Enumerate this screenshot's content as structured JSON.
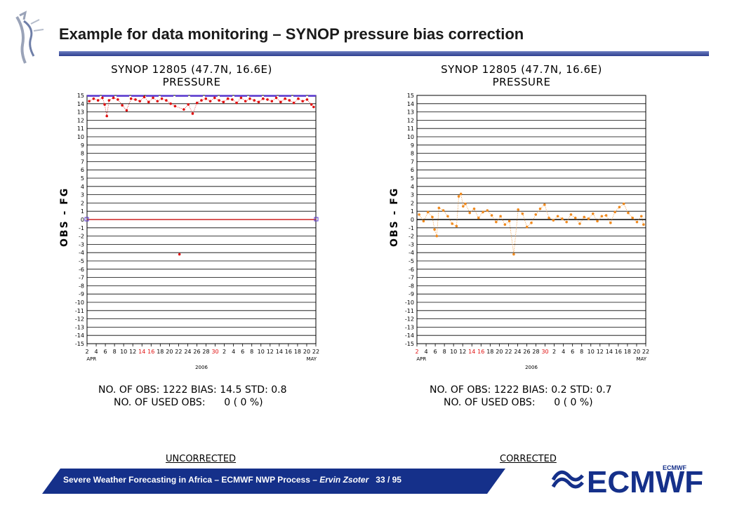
{
  "slide": {
    "title": "Example for data monitoring – SYNOP pressure bias correction",
    "footer_main": "Severe Weather Forecasting in Africa – ECMWF NWP Process – ",
    "footer_author": "Ervin Zsoter",
    "footer_page": "33 / 95",
    "logo_text": "ECMWF",
    "logo_small_text": "ECMWF"
  },
  "colors": {
    "title_rule": "#2e3f8f",
    "footer_bar": "#15308a",
    "uncorrected_points": "#e01010",
    "corrected_points": "#f08a1e",
    "used_obs_marker": "#5533cc"
  },
  "panels": [
    {
      "caption": "UNCORRECTED",
      "title_line1": "SYNOP 12805 (47.7N, 16.6E)",
      "title_line2": "PRESSURE",
      "stats_line1": "NO. OF OBS: 1222 BIAS: 14.5 STD: 0.8",
      "stats_line2": "NO. OF USED OBS:      0 ( 0 %)"
    },
    {
      "caption": "CORRECTED",
      "title_line1": "SYNOP 12805 (47.7N, 16.6E)",
      "title_line2": "PRESSURE",
      "stats_line1": "NO. OF OBS: 1222 BIAS: 0.2 STD: 0.7",
      "stats_line2": "NO. OF USED OBS:      0 ( 0 %)"
    }
  ],
  "chart_data": [
    {
      "type": "scatter",
      "title": "SYNOP 12805 (47.7N, 16.6E) PRESSURE",
      "ylabel": "OBS - FG",
      "ylim": [
        -15,
        15
      ],
      "yticks": [
        15,
        14,
        13,
        12,
        11,
        10,
        9,
        8,
        7,
        6,
        5,
        4,
        3,
        2,
        1,
        0,
        -1,
        -2,
        -3,
        -4,
        -5,
        -6,
        -7,
        -8,
        -9,
        -10,
        -11,
        -12,
        -13,
        -14,
        -15
      ],
      "xlim": [
        1,
        53
      ],
      "xtick_labels": [
        "2",
        "4",
        "6",
        "8",
        "10",
        "12",
        "14",
        "16",
        "18",
        "20",
        "22",
        "24",
        "26",
        "28",
        "30",
        "2",
        "4",
        "6",
        "8",
        "10",
        "12",
        "14",
        "16",
        "18",
        "20",
        "22"
      ],
      "xtick_red": [
        "16",
        "30",
        "14"
      ],
      "month_labels": [
        {
          "label": "APR",
          "x": 2
        },
        {
          "label": "MAY",
          "x": 52
        }
      ],
      "year_label": "2006",
      "grid": true,
      "series": [
        {
          "x": [
            1.5,
            2.5,
            3.5,
            4.5,
            5.0,
            5.5,
            6.0,
            7.0,
            8.0,
            9.0,
            10.0,
            11.0,
            12.0,
            13.0,
            14.0,
            15.0,
            16.0,
            17.0,
            18.0,
            19.0,
            20.0,
            21.0,
            22.0,
            23.0,
            24.0,
            25.0,
            26.0,
            27.0,
            28.0,
            29.0,
            30.0,
            31.0,
            32.0,
            33.0,
            34.0,
            35.0,
            36.0,
            37.0,
            38.0,
            39.0,
            40.0,
            41.0,
            42.0,
            43.0,
            44.0,
            45.0,
            46.0,
            47.0,
            48.0,
            49.0,
            50.0,
            51.0,
            52.0,
            52.5
          ],
          "y": [
            14.3,
            14.6,
            14.4,
            14.7,
            13.9,
            12.5,
            14.4,
            14.7,
            14.5,
            13.8,
            13.2,
            14.6,
            14.5,
            14.3,
            14.8,
            14.2,
            14.7,
            14.3,
            14.6,
            14.4,
            14.0,
            13.7,
            -4.2,
            13.3,
            13.9,
            12.8,
            14.1,
            14.4,
            14.6,
            14.3,
            14.7,
            14.4,
            14.2,
            14.6,
            14.5,
            14.1,
            14.7,
            14.3,
            14.6,
            14.4,
            14.2,
            14.6,
            14.5,
            14.3,
            14.7,
            14.2,
            14.6,
            14.4,
            14.1,
            14.6,
            14.3,
            14.5,
            13.9,
            13.6
          ]
        }
      ]
    },
    {
      "type": "scatter",
      "title": "SYNOP 12805 (47.7N, 16.6E) PRESSURE",
      "ylabel": "OBS - FG",
      "ylim": [
        -15,
        15
      ],
      "yticks": [
        15,
        14,
        13,
        12,
        11,
        10,
        9,
        8,
        7,
        6,
        5,
        4,
        3,
        2,
        1,
        0,
        -1,
        -2,
        -3,
        -4,
        -5,
        -6,
        -7,
        -8,
        -9,
        -10,
        -11,
        -12,
        -13,
        -14,
        -15
      ],
      "xlim": [
        1,
        53
      ],
      "xtick_labels": [
        "2",
        "4",
        "6",
        "8",
        "10",
        "12",
        "14",
        "16",
        "18",
        "20",
        "22",
        "24",
        "26",
        "28",
        "30",
        "2",
        "4",
        "6",
        "8",
        "10",
        "12",
        "14",
        "16",
        "18",
        "20",
        "22"
      ],
      "xtick_red": [
        "2",
        "16",
        "30",
        "14"
      ],
      "month_labels": [
        {
          "label": "APR",
          "x": 2
        },
        {
          "label": "MAY",
          "x": 52
        }
      ],
      "year_label": "2006",
      "grid": true,
      "series": [
        {
          "x": [
            1.5,
            2.5,
            3.5,
            4.5,
            5.0,
            5.5,
            6.0,
            7.0,
            8.0,
            9.0,
            10.0,
            10.5,
            11.0,
            11.5,
            12.0,
            13.0,
            14.0,
            15.0,
            16.0,
            17.0,
            18.0,
            19.0,
            20.0,
            21.0,
            22.0,
            23.0,
            24.0,
            25.0,
            26.0,
            27.0,
            28.0,
            29.0,
            30.0,
            31.0,
            32.0,
            33.0,
            34.0,
            35.0,
            36.0,
            37.0,
            38.0,
            39.0,
            40.0,
            41.0,
            42.0,
            43.0,
            44.0,
            45.0,
            46.0,
            47.0,
            48.0,
            49.0,
            50.0,
            51.0,
            52.0,
            52.5
          ],
          "y": [
            0.6,
            -0.2,
            0.9,
            0.3,
            -1.2,
            -2.0,
            1.4,
            1.1,
            0.4,
            -0.5,
            -0.8,
            2.8,
            3.1,
            1.6,
            1.9,
            0.8,
            1.3,
            0.2,
            0.9,
            1.1,
            0.5,
            -0.3,
            0.4,
            -0.6,
            -0.2,
            -4.2,
            1.2,
            0.7,
            -0.9,
            -0.4,
            0.6,
            1.3,
            1.8,
            0.2,
            -0.1,
            0.4,
            0.1,
            -0.3,
            0.6,
            0.2,
            -0.5,
            0.3,
            0.1,
            0.7,
            -0.2,
            0.4,
            0.5,
            -0.4,
            0.9,
            1.5,
            1.9,
            0.8,
            0.2,
            -0.3,
            0.4,
            -0.6
          ]
        }
      ]
    }
  ]
}
